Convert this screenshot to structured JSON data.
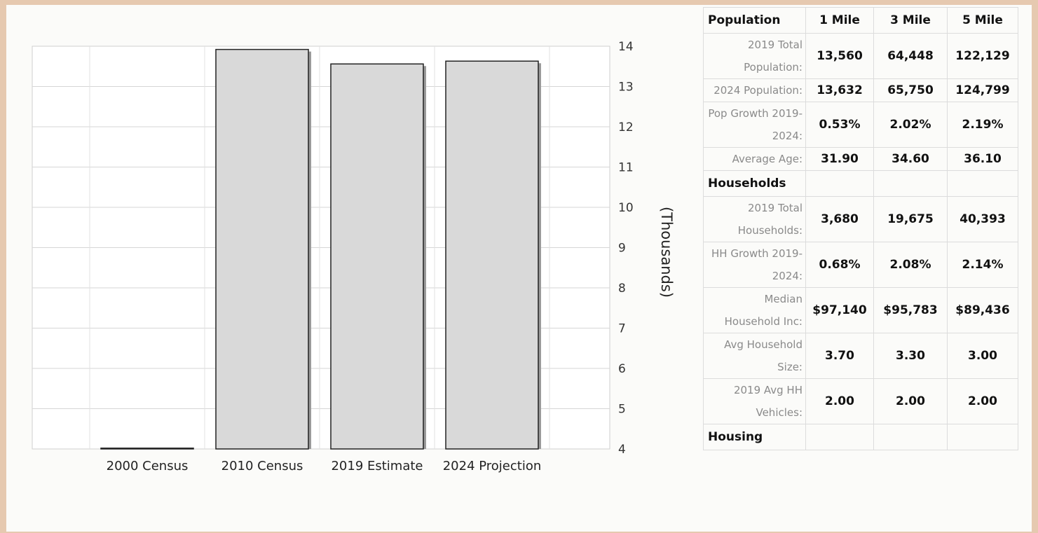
{
  "chart_data": {
    "type": "bar",
    "categories": [
      "2000 Census",
      "2010 Census",
      "2019 Estimate",
      "2024 Projection"
    ],
    "values": [
      4.02,
      13.92,
      13.56,
      13.63
    ],
    "ylabel": "(Thousands)",
    "ylim": [
      4,
      14
    ],
    "yticks": [
      4,
      5,
      6,
      7,
      8,
      9,
      10,
      11,
      12,
      13,
      14
    ],
    "y_axis_side": "right",
    "grid": true,
    "bar_color": "#d9d9d9"
  },
  "table": {
    "columns": [
      "Population",
      "1 Mile",
      "3 Mile",
      "5 Mile"
    ],
    "rows": [
      {
        "kind": "data",
        "label": "2019 Total Population:",
        "values": [
          "13,560",
          "64,448",
          "122,129"
        ]
      },
      {
        "kind": "data",
        "label": "2024 Population:",
        "values": [
          "13,632",
          "65,750",
          "124,799"
        ]
      },
      {
        "kind": "data",
        "label": "Pop Growth 2019-2024:",
        "values": [
          "0.53%",
          "2.02%",
          "2.19%"
        ]
      },
      {
        "kind": "data",
        "label": "Average Age:",
        "values": [
          "31.90",
          "34.60",
          "36.10"
        ]
      },
      {
        "kind": "section",
        "label": "Households"
      },
      {
        "kind": "data",
        "label": "2019 Total Households:",
        "values": [
          "3,680",
          "19,675",
          "40,393"
        ]
      },
      {
        "kind": "data",
        "label": "HH Growth 2019-2024:",
        "values": [
          "0.68%",
          "2.08%",
          "2.14%"
        ]
      },
      {
        "kind": "data",
        "label": "Median Household Inc:",
        "values": [
          "$97,140",
          "$95,783",
          "$89,436"
        ]
      },
      {
        "kind": "data",
        "label": "Avg Household Size:",
        "values": [
          "3.70",
          "3.30",
          "3.00"
        ]
      },
      {
        "kind": "data",
        "label": "2019 Avg HH Vehicles:",
        "values": [
          "2.00",
          "2.00",
          "2.00"
        ]
      },
      {
        "kind": "section",
        "label": "Housing"
      }
    ]
  }
}
